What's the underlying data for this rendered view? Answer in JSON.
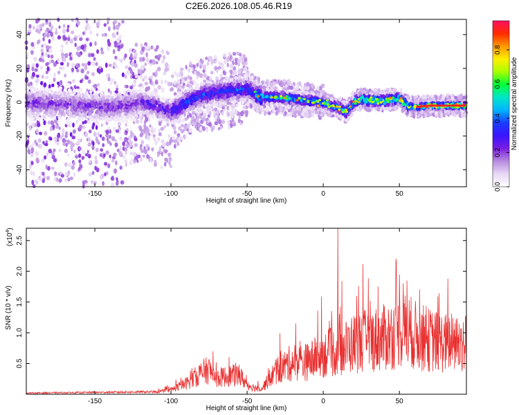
{
  "title": "C2E6.2026.108.05.46.R19",
  "chart_data": [
    {
      "type": "heatmap",
      "title": "C2E6.2026.108.05.46.R19",
      "xlabel": "Height of straight line (km)",
      "ylabel": "Frequency (Hz)",
      "xlim": [
        -195,
        94
      ],
      "ylim": [
        -50,
        49
      ],
      "x_ticks": [
        -150,
        -100,
        -50,
        0,
        50
      ],
      "x_tick_labels": [
        "-150",
        "-100",
        "-50",
        "0",
        "50"
      ],
      "y_ticks": [
        -40,
        -20,
        0,
        20,
        40
      ],
      "y_tick_labels": [
        "-40",
        "-20",
        "0",
        "20",
        "40"
      ],
      "colorbar": {
        "label": "Normalized spectral amplitude",
        "range": [
          0.0,
          0.97
        ],
        "ticks": [
          0.0,
          0.2,
          0.4,
          0.6,
          0.8
        ],
        "tick_labels": [
          "0.0",
          "0.2",
          "0.4",
          "0.6",
          "0.8"
        ],
        "colormap": [
          "#ffffff",
          "#e8d8f5",
          "#b88be0",
          "#7a1fe0",
          "#3a14ff",
          "#1a3cff",
          "#00b4ff",
          "#00e6c8",
          "#00ff3a",
          "#aaff00",
          "#ffee00",
          "#ff9a00",
          "#ff2a00",
          "#ff1060"
        ]
      },
      "ridge": {
        "x": [
          -195,
          -180,
          -160,
          -140,
          -130,
          -120,
          -110,
          -100,
          -90,
          -80,
          -70,
          -60,
          -50,
          -45,
          -40,
          -30,
          -20,
          -10,
          0,
          5,
          10,
          15,
          20,
          25,
          30,
          40,
          50,
          55,
          60,
          70,
          80,
          94
        ],
        "y": [
          0,
          -1,
          -2,
          -3,
          -2,
          0,
          -2,
          -6,
          0,
          4,
          6,
          7,
          8,
          5,
          3,
          3,
          2,
          1,
          0,
          -2,
          -3,
          -6,
          0,
          2,
          1,
          1,
          2,
          -2,
          -3,
          -2,
          -2,
          -2
        ]
      }
    },
    {
      "type": "line",
      "xlabel": "Height of straight line (km)",
      "ylabel": "SNR (10 * v/v)",
      "multiplier_label": "(x10",
      "multiplier_exp": "4",
      "multiplier_close": ")",
      "xlim": [
        -195,
        94
      ],
      "ylim": [
        0,
        2.7
      ],
      "x_ticks": [
        -150,
        -100,
        -50,
        0,
        50
      ],
      "x_tick_labels": [
        "-150",
        "-100",
        "-50",
        "0",
        "50"
      ],
      "y_ticks": [
        0.5,
        1.0,
        1.5,
        2.0,
        2.5
      ],
      "y_tick_labels": [
        "0.5",
        "1.0",
        "1.5",
        "2.0",
        "2.5"
      ],
      "color": "#e83030",
      "envelope": {
        "x": [
          -195,
          -150,
          -110,
          -100,
          -90,
          -80,
          -75,
          -70,
          -60,
          -55,
          -50,
          -45,
          -40,
          -35,
          -30,
          -20,
          -10,
          0,
          10,
          20,
          30,
          40,
          50,
          55,
          60,
          70,
          80,
          94
        ],
        "y": [
          0.02,
          0.03,
          0.04,
          0.08,
          0.2,
          0.4,
          0.45,
          0.3,
          0.35,
          0.35,
          0.18,
          0.12,
          0.12,
          0.3,
          0.45,
          0.6,
          0.6,
          0.75,
          0.8,
          0.95,
          1.0,
          1.05,
          1.15,
          1.2,
          1.1,
          1.0,
          0.95,
          0.95
        ]
      },
      "peaks": [
        {
          "x": 9.5,
          "y": 2.7
        },
        {
          "x": 48,
          "y": 2.15
        },
        {
          "x": 50,
          "y": 1.95
        },
        {
          "x": 36,
          "y": 1.75
        },
        {
          "x": 55,
          "y": 1.85
        }
      ]
    }
  ]
}
